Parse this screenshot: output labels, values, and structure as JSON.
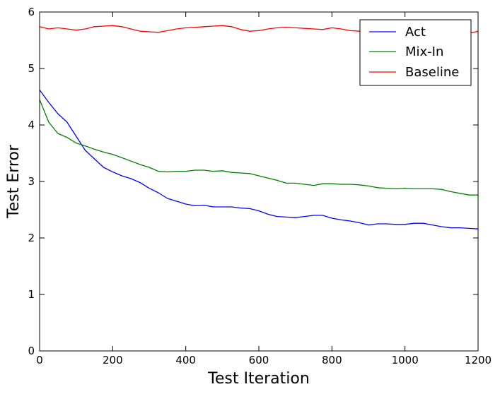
{
  "chart_data": {
    "type": "line",
    "xlabel": "Test Iteration",
    "ylabel": "Test Error",
    "xlim": [
      0,
      1200
    ],
    "ylim": [
      0,
      6
    ],
    "xticks": [
      0,
      200,
      400,
      600,
      800,
      1000,
      1200
    ],
    "yticks": [
      0,
      1,
      2,
      3,
      4,
      5,
      6
    ],
    "grid": false,
    "legend_position": "top-right",
    "x": [
      0,
      25,
      50,
      75,
      100,
      125,
      150,
      175,
      200,
      225,
      250,
      275,
      300,
      325,
      350,
      375,
      400,
      425,
      450,
      475,
      500,
      525,
      550,
      575,
      600,
      625,
      650,
      675,
      700,
      725,
      750,
      775,
      800,
      825,
      850,
      875,
      900,
      925,
      950,
      975,
      1000,
      1025,
      1050,
      1075,
      1100,
      1125,
      1150,
      1175,
      1200
    ],
    "series": [
      {
        "name": "Act",
        "color": "#0000ff",
        "values": [
          4.62,
          4.4,
          4.2,
          4.05,
          3.8,
          3.55,
          3.4,
          3.25,
          3.17,
          3.1,
          3.05,
          2.98,
          2.88,
          2.8,
          2.7,
          2.65,
          2.6,
          2.57,
          2.58,
          2.55,
          2.55,
          2.55,
          2.53,
          2.52,
          2.48,
          2.42,
          2.38,
          2.37,
          2.36,
          2.38,
          2.4,
          2.4,
          2.35,
          2.32,
          2.3,
          2.27,
          2.23,
          2.25,
          2.25,
          2.24,
          2.24,
          2.26,
          2.26,
          2.23,
          2.2,
          2.18,
          2.18,
          2.17,
          2.16
        ]
      },
      {
        "name": "Mix-In",
        "color": "#008000",
        "values": [
          4.45,
          4.05,
          3.85,
          3.78,
          3.68,
          3.63,
          3.57,
          3.52,
          3.48,
          3.42,
          3.36,
          3.3,
          3.25,
          3.18,
          3.17,
          3.18,
          3.18,
          3.2,
          3.2,
          3.18,
          3.19,
          3.16,
          3.15,
          3.14,
          3.1,
          3.06,
          3.02,
          2.97,
          2.97,
          2.95,
          2.93,
          2.96,
          2.96,
          2.95,
          2.95,
          2.94,
          2.92,
          2.89,
          2.88,
          2.87,
          2.88,
          2.87,
          2.87,
          2.87,
          2.86,
          2.82,
          2.79,
          2.76,
          2.76
        ]
      },
      {
        "name": "Baseline",
        "color": "#ff0000",
        "values": [
          5.74,
          5.7,
          5.72,
          5.7,
          5.68,
          5.7,
          5.74,
          5.75,
          5.76,
          5.74,
          5.7,
          5.66,
          5.65,
          5.64,
          5.67,
          5.7,
          5.72,
          5.73,
          5.74,
          5.75,
          5.76,
          5.74,
          5.69,
          5.66,
          5.67,
          5.7,
          5.72,
          5.73,
          5.72,
          5.71,
          5.7,
          5.69,
          5.72,
          5.7,
          5.67,
          5.66,
          5.64,
          5.62,
          5.62,
          5.63,
          5.64,
          5.64,
          5.63,
          5.62,
          5.63,
          5.61,
          5.6,
          5.62,
          5.66
        ]
      }
    ]
  }
}
